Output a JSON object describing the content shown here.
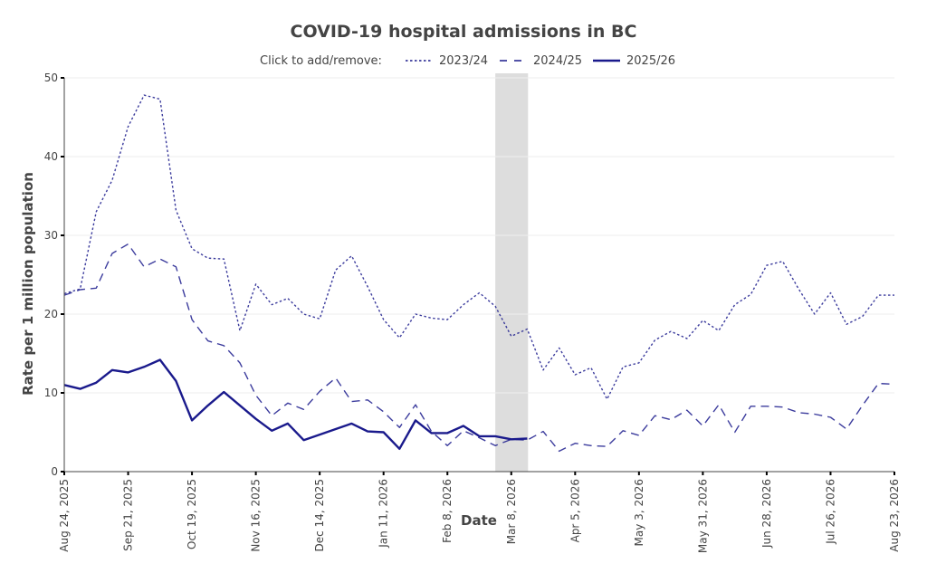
{
  "chart_data": {
    "type": "line",
    "title": "COVID-19 hospital admissions in BC",
    "legend_prompt": "Click to add/remove:",
    "legend_position": "top-center",
    "xlabel": "Date",
    "ylabel": "Rate per 1 million population",
    "ylim": [
      0,
      50
    ],
    "yticks": [
      0,
      10,
      20,
      30,
      40,
      50
    ],
    "grid": true,
    "x_start": "Aug 24, 2025",
    "x_unit": "week",
    "n_weeks": 53,
    "xtick_labels": [
      "Aug 24, 2025",
      "Sep 21, 2025",
      "Oct 19, 2025",
      "Nov 16, 2025",
      "Dec 14, 2025",
      "Jan 11, 2026",
      "Feb 8, 2026",
      "Mar 8, 2026",
      "Apr 5, 2026",
      "May 3, 2026",
      "May 31, 2026",
      "Jun 28, 2026",
      "Jul 26, 2026",
      "Aug 23, 2026"
    ],
    "xtick_week_index": [
      0,
      4,
      8,
      12,
      16,
      20,
      24,
      28,
      32,
      36,
      40,
      44,
      48,
      52
    ],
    "shaded_region": {
      "start_week": 27,
      "end_week": 29.05,
      "color": "#dddddd"
    },
    "line_color": "#1a1a8c",
    "series": [
      {
        "name": "2023/24",
        "style": "dotted",
        "values": [
          22.6,
          23.2,
          33.0,
          37.0,
          43.8,
          47.8,
          47.3,
          33.2,
          28.3,
          27.1,
          27.0,
          17.9,
          23.8,
          21.2,
          22.0,
          20.0,
          19.4,
          25.6,
          27.4,
          23.5,
          19.3,
          17.0,
          20.0,
          19.5,
          19.3,
          21.2,
          22.7,
          21.0,
          17.2,
          18.1,
          12.9,
          15.7,
          12.3,
          13.2,
          9.2,
          13.3,
          13.8,
          16.7,
          17.8,
          16.9,
          19.2,
          17.9,
          21.2,
          22.5,
          26.2,
          26.7,
          23.2,
          20.0,
          22.7,
          18.7,
          19.7,
          22.4,
          22.4
        ]
      },
      {
        "name": "2024/25",
        "style": "dashed",
        "values": [
          22.4,
          23.1,
          23.3,
          27.7,
          28.9,
          26.0,
          27.0,
          26.0,
          19.3,
          16.6,
          16.0,
          13.8,
          9.7,
          7.1,
          8.7,
          7.9,
          10.2,
          11.9,
          8.9,
          9.1,
          7.6,
          5.6,
          8.5,
          5.1,
          3.3,
          5.2,
          4.3,
          3.3,
          4.1,
          4.0,
          5.1,
          2.6,
          3.6,
          3.3,
          3.2,
          5.2,
          4.6,
          7.1,
          6.6,
          7.8,
          5.8,
          8.5,
          5.0,
          8.3,
          8.3,
          8.2,
          7.5,
          7.3,
          6.9,
          5.4,
          8.4,
          11.2,
          11.1
        ]
      },
      {
        "name": "2025/26",
        "style": "solid",
        "values": [
          11.0,
          10.5,
          11.3,
          12.9,
          12.6,
          13.3,
          14.2,
          11.5,
          6.5,
          8.4,
          10.1,
          8.4,
          6.7,
          5.2,
          6.1,
          4.0,
          4.7,
          5.4,
          6.1,
          5.1,
          5.0,
          2.9,
          6.5,
          4.9,
          4.9,
          5.8,
          4.5,
          4.5,
          4.1,
          4.2
        ]
      }
    ]
  }
}
